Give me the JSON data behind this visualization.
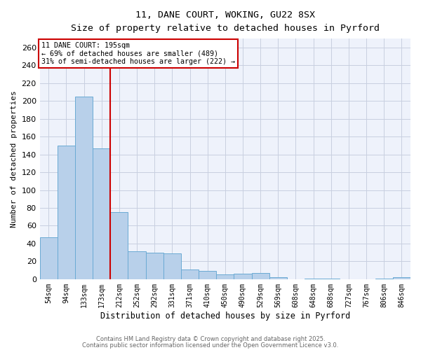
{
  "title_line1": "11, DANE COURT, WOKING, GU22 8SX",
  "title_line2": "Size of property relative to detached houses in Pyrford",
  "xlabel": "Distribution of detached houses by size in Pyrford",
  "ylabel": "Number of detached properties",
  "categories": [
    "54sqm",
    "94sqm",
    "133sqm",
    "173sqm",
    "212sqm",
    "252sqm",
    "292sqm",
    "331sqm",
    "371sqm",
    "410sqm",
    "450sqm",
    "490sqm",
    "529sqm",
    "569sqm",
    "608sqm",
    "648sqm",
    "688sqm",
    "727sqm",
    "767sqm",
    "806sqm",
    "846sqm"
  ],
  "values": [
    47,
    150,
    205,
    147,
    75,
    31,
    30,
    29,
    11,
    9,
    5,
    6,
    7,
    2,
    0,
    1,
    1,
    0,
    0,
    1,
    2
  ],
  "bar_color": "#b8d0ea",
  "bar_edge_color": "#6aaad4",
  "vline_x": 3.5,
  "vline_color": "#cc0000",
  "annotation_line1": "11 DANE COURT: 195sqm",
  "annotation_line2": "← 69% of detached houses are smaller (489)",
  "annotation_line3": "31% of semi-detached houses are larger (222) →",
  "ylim": [
    0,
    270
  ],
  "yticks": [
    0,
    20,
    40,
    60,
    80,
    100,
    120,
    140,
    160,
    180,
    200,
    220,
    240,
    260
  ],
  "bg_color": "#eef2fb",
  "grid_color": "#c8cfe0",
  "footer_line1": "Contains HM Land Registry data © Crown copyright and database right 2025.",
  "footer_line2": "Contains public sector information licensed under the Open Government Licence v3.0."
}
